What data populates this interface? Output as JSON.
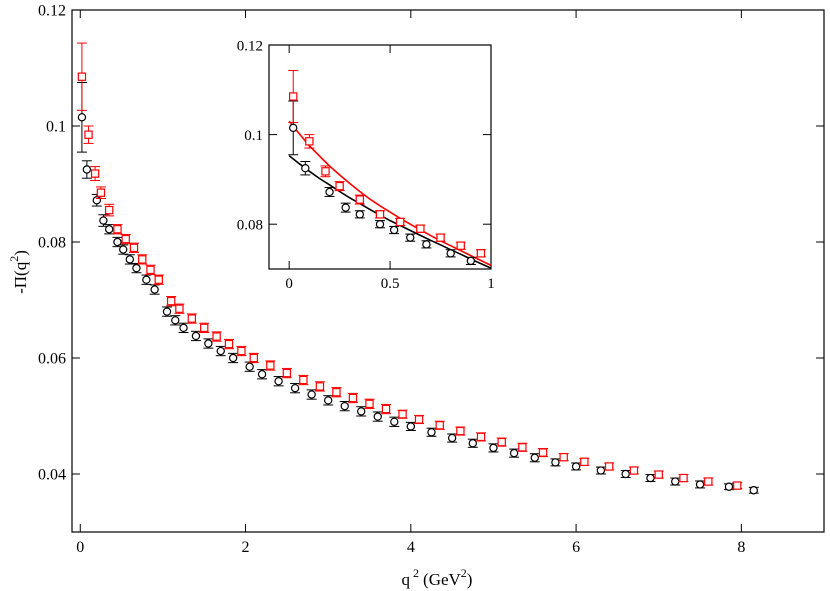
{
  "chart_data": {
    "type": "scatter",
    "title": "",
    "xlabel": "q",
    "xlabel_sup": "2",
    "xlabel_unit": "(GeV",
    "xlabel_unit_sup": "2",
    "xlabel_unit_close": ")",
    "ylabel": "-Π(q",
    "ylabel_sup": "2",
    "ylabel_close": ")",
    "xlim": [
      -0.1,
      9.0
    ],
    "ylim": [
      0.03,
      0.12
    ],
    "xticks": [
      0,
      2,
      4,
      6,
      8
    ],
    "yticks": [
      0.04,
      0.06,
      0.08,
      0.1,
      0.12
    ],
    "xtick_labels": [
      "0",
      "2",
      "4",
      "6",
      "8"
    ],
    "ytick_labels": [
      "0.04",
      "0.06",
      "0.08",
      "0.1",
      "0.12"
    ],
    "colors": {
      "series_a": "#000000",
      "series_b": "#ff0000"
    },
    "series": [
      {
        "name": "circles (black)",
        "marker": "circle",
        "color": "#000000",
        "points": [
          [
            0.02,
            0.1015,
            0.006
          ],
          [
            0.08,
            0.0925,
            0.0015
          ],
          [
            0.2,
            0.0872,
            0.001
          ],
          [
            0.28,
            0.0837,
            0.001
          ],
          [
            0.35,
            0.0822,
            0.0008
          ],
          [
            0.45,
            0.08,
            0.0008
          ],
          [
            0.52,
            0.0787,
            0.0008
          ],
          [
            0.6,
            0.077,
            0.0008
          ],
          [
            0.68,
            0.0755,
            0.0008
          ],
          [
            0.8,
            0.0735,
            0.0008
          ],
          [
            0.9,
            0.0718,
            0.0008
          ],
          [
            1.05,
            0.068,
            0.0008
          ],
          [
            1.15,
            0.0665,
            0.0008
          ],
          [
            1.25,
            0.0652,
            0.0008
          ],
          [
            1.4,
            0.0638,
            0.0008
          ],
          [
            1.55,
            0.0625,
            0.0008
          ],
          [
            1.7,
            0.0612,
            0.0008
          ],
          [
            1.85,
            0.06,
            0.0008
          ],
          [
            2.05,
            0.0585,
            0.0008
          ],
          [
            2.2,
            0.0572,
            0.0008
          ],
          [
            2.4,
            0.056,
            0.0008
          ],
          [
            2.6,
            0.0548,
            0.0008
          ],
          [
            2.8,
            0.0537,
            0.0008
          ],
          [
            3.0,
            0.0527,
            0.0008
          ],
          [
            3.2,
            0.0517,
            0.0008
          ],
          [
            3.4,
            0.0508,
            0.0008
          ],
          [
            3.6,
            0.0499,
            0.0008
          ],
          [
            3.8,
            0.049,
            0.0008
          ],
          [
            4.0,
            0.0482,
            0.0007
          ],
          [
            4.25,
            0.0472,
            0.0007
          ],
          [
            4.5,
            0.0462,
            0.0007
          ],
          [
            4.75,
            0.0453,
            0.0007
          ],
          [
            5.0,
            0.0445,
            0.0007
          ],
          [
            5.25,
            0.0436,
            0.0007
          ],
          [
            5.5,
            0.0428,
            0.0007
          ],
          [
            5.75,
            0.042,
            0.0006
          ],
          [
            6.0,
            0.0413,
            0.0006
          ],
          [
            6.3,
            0.0406,
            0.0006
          ],
          [
            6.6,
            0.04,
            0.0006
          ],
          [
            6.9,
            0.0393,
            0.0006
          ],
          [
            7.2,
            0.0387,
            0.0006
          ],
          [
            7.5,
            0.0382,
            0.0006
          ],
          [
            7.85,
            0.0378,
            0.0005
          ],
          [
            8.15,
            0.0372,
            0.0005
          ]
        ]
      },
      {
        "name": "squares (red)",
        "marker": "square",
        "color": "#ff0000",
        "points": [
          [
            0.02,
            0.1085,
            0.0058
          ],
          [
            0.1,
            0.0985,
            0.0015
          ],
          [
            0.18,
            0.0918,
            0.0012
          ],
          [
            0.25,
            0.0885,
            0.001
          ],
          [
            0.35,
            0.0855,
            0.001
          ],
          [
            0.45,
            0.0822,
            0.0008
          ],
          [
            0.55,
            0.0805,
            0.0008
          ],
          [
            0.65,
            0.079,
            0.0008
          ],
          [
            0.75,
            0.077,
            0.0008
          ],
          [
            0.85,
            0.0752,
            0.0008
          ],
          [
            0.95,
            0.0735,
            0.0008
          ],
          [
            1.1,
            0.0698,
            0.0008
          ],
          [
            1.2,
            0.0685,
            0.0008
          ],
          [
            1.35,
            0.0668,
            0.0008
          ],
          [
            1.5,
            0.0652,
            0.0008
          ],
          [
            1.65,
            0.0637,
            0.0008
          ],
          [
            1.8,
            0.0624,
            0.0008
          ],
          [
            1.95,
            0.0612,
            0.0008
          ],
          [
            2.1,
            0.06,
            0.0008
          ],
          [
            2.3,
            0.0587,
            0.0008
          ],
          [
            2.5,
            0.0574,
            0.0008
          ],
          [
            2.7,
            0.0562,
            0.0008
          ],
          [
            2.9,
            0.0551,
            0.0008
          ],
          [
            3.1,
            0.0541,
            0.0008
          ],
          [
            3.3,
            0.0531,
            0.0008
          ],
          [
            3.5,
            0.0521,
            0.0008
          ],
          [
            3.7,
            0.0512,
            0.0008
          ],
          [
            3.9,
            0.0503,
            0.0007
          ],
          [
            4.1,
            0.0494,
            0.0007
          ],
          [
            4.35,
            0.0484,
            0.0007
          ],
          [
            4.6,
            0.0474,
            0.0007
          ],
          [
            4.85,
            0.0464,
            0.0007
          ],
          [
            5.1,
            0.0455,
            0.0007
          ],
          [
            5.35,
            0.0446,
            0.0007
          ],
          [
            5.6,
            0.0437,
            0.0007
          ],
          [
            5.85,
            0.0429,
            0.0006
          ],
          [
            6.1,
            0.0421,
            0.0006
          ],
          [
            6.4,
            0.0413,
            0.0006
          ],
          [
            6.7,
            0.0406,
            0.0006
          ],
          [
            7.0,
            0.0399,
            0.0006
          ],
          [
            7.3,
            0.0393,
            0.0006
          ],
          [
            7.6,
            0.0387,
            0.0006
          ],
          [
            7.95,
            0.038,
            0.0005
          ]
        ]
      }
    ],
    "inset": {
      "xlim": [
        -0.1,
        1.0
      ],
      "ylim": [
        0.07,
        0.12
      ],
      "xticks": [
        0,
        0.5,
        1
      ],
      "yticks": [
        0.08,
        0.1,
        0.12
      ],
      "xtick_labels": [
        "0",
        "0.5",
        "1"
      ],
      "ytick_labels": [
        "0.08",
        "0.1",
        "0.12"
      ],
      "fits": [
        {
          "name": "fit black",
          "color": "#000000",
          "x": [
            0.0,
            0.05,
            0.1,
            0.15,
            0.2,
            0.25,
            0.3,
            0.35,
            0.4,
            0.45,
            0.5,
            0.55,
            0.6,
            0.65,
            0.7,
            0.75,
            0.8,
            0.85,
            0.9,
            0.95,
            1.0
          ],
          "y": [
            0.0953,
            0.0935,
            0.0918,
            0.0902,
            0.0888,
            0.0873,
            0.0859,
            0.0846,
            0.0833,
            0.082,
            0.0808,
            0.0797,
            0.0786,
            0.0775,
            0.0764,
            0.0754,
            0.0743,
            0.0733,
            0.0722,
            0.0712,
            0.0702
          ]
        },
        {
          "name": "fit red",
          "color": "#ff0000",
          "x": [
            0.0,
            0.05,
            0.1,
            0.15,
            0.2,
            0.25,
            0.3,
            0.35,
            0.4,
            0.45,
            0.5,
            0.55,
            0.6,
            0.65,
            0.7,
            0.75,
            0.8,
            0.85,
            0.9,
            0.95,
            1.0
          ],
          "y": [
            0.103,
            0.1002,
            0.0975,
            0.0952,
            0.093,
            0.091,
            0.0891,
            0.0873,
            0.0856,
            0.0841,
            0.0827,
            0.0813,
            0.08,
            0.0787,
            0.0775,
            0.0763,
            0.0752,
            0.0741,
            0.073,
            0.0719,
            0.0708
          ]
        }
      ]
    }
  }
}
